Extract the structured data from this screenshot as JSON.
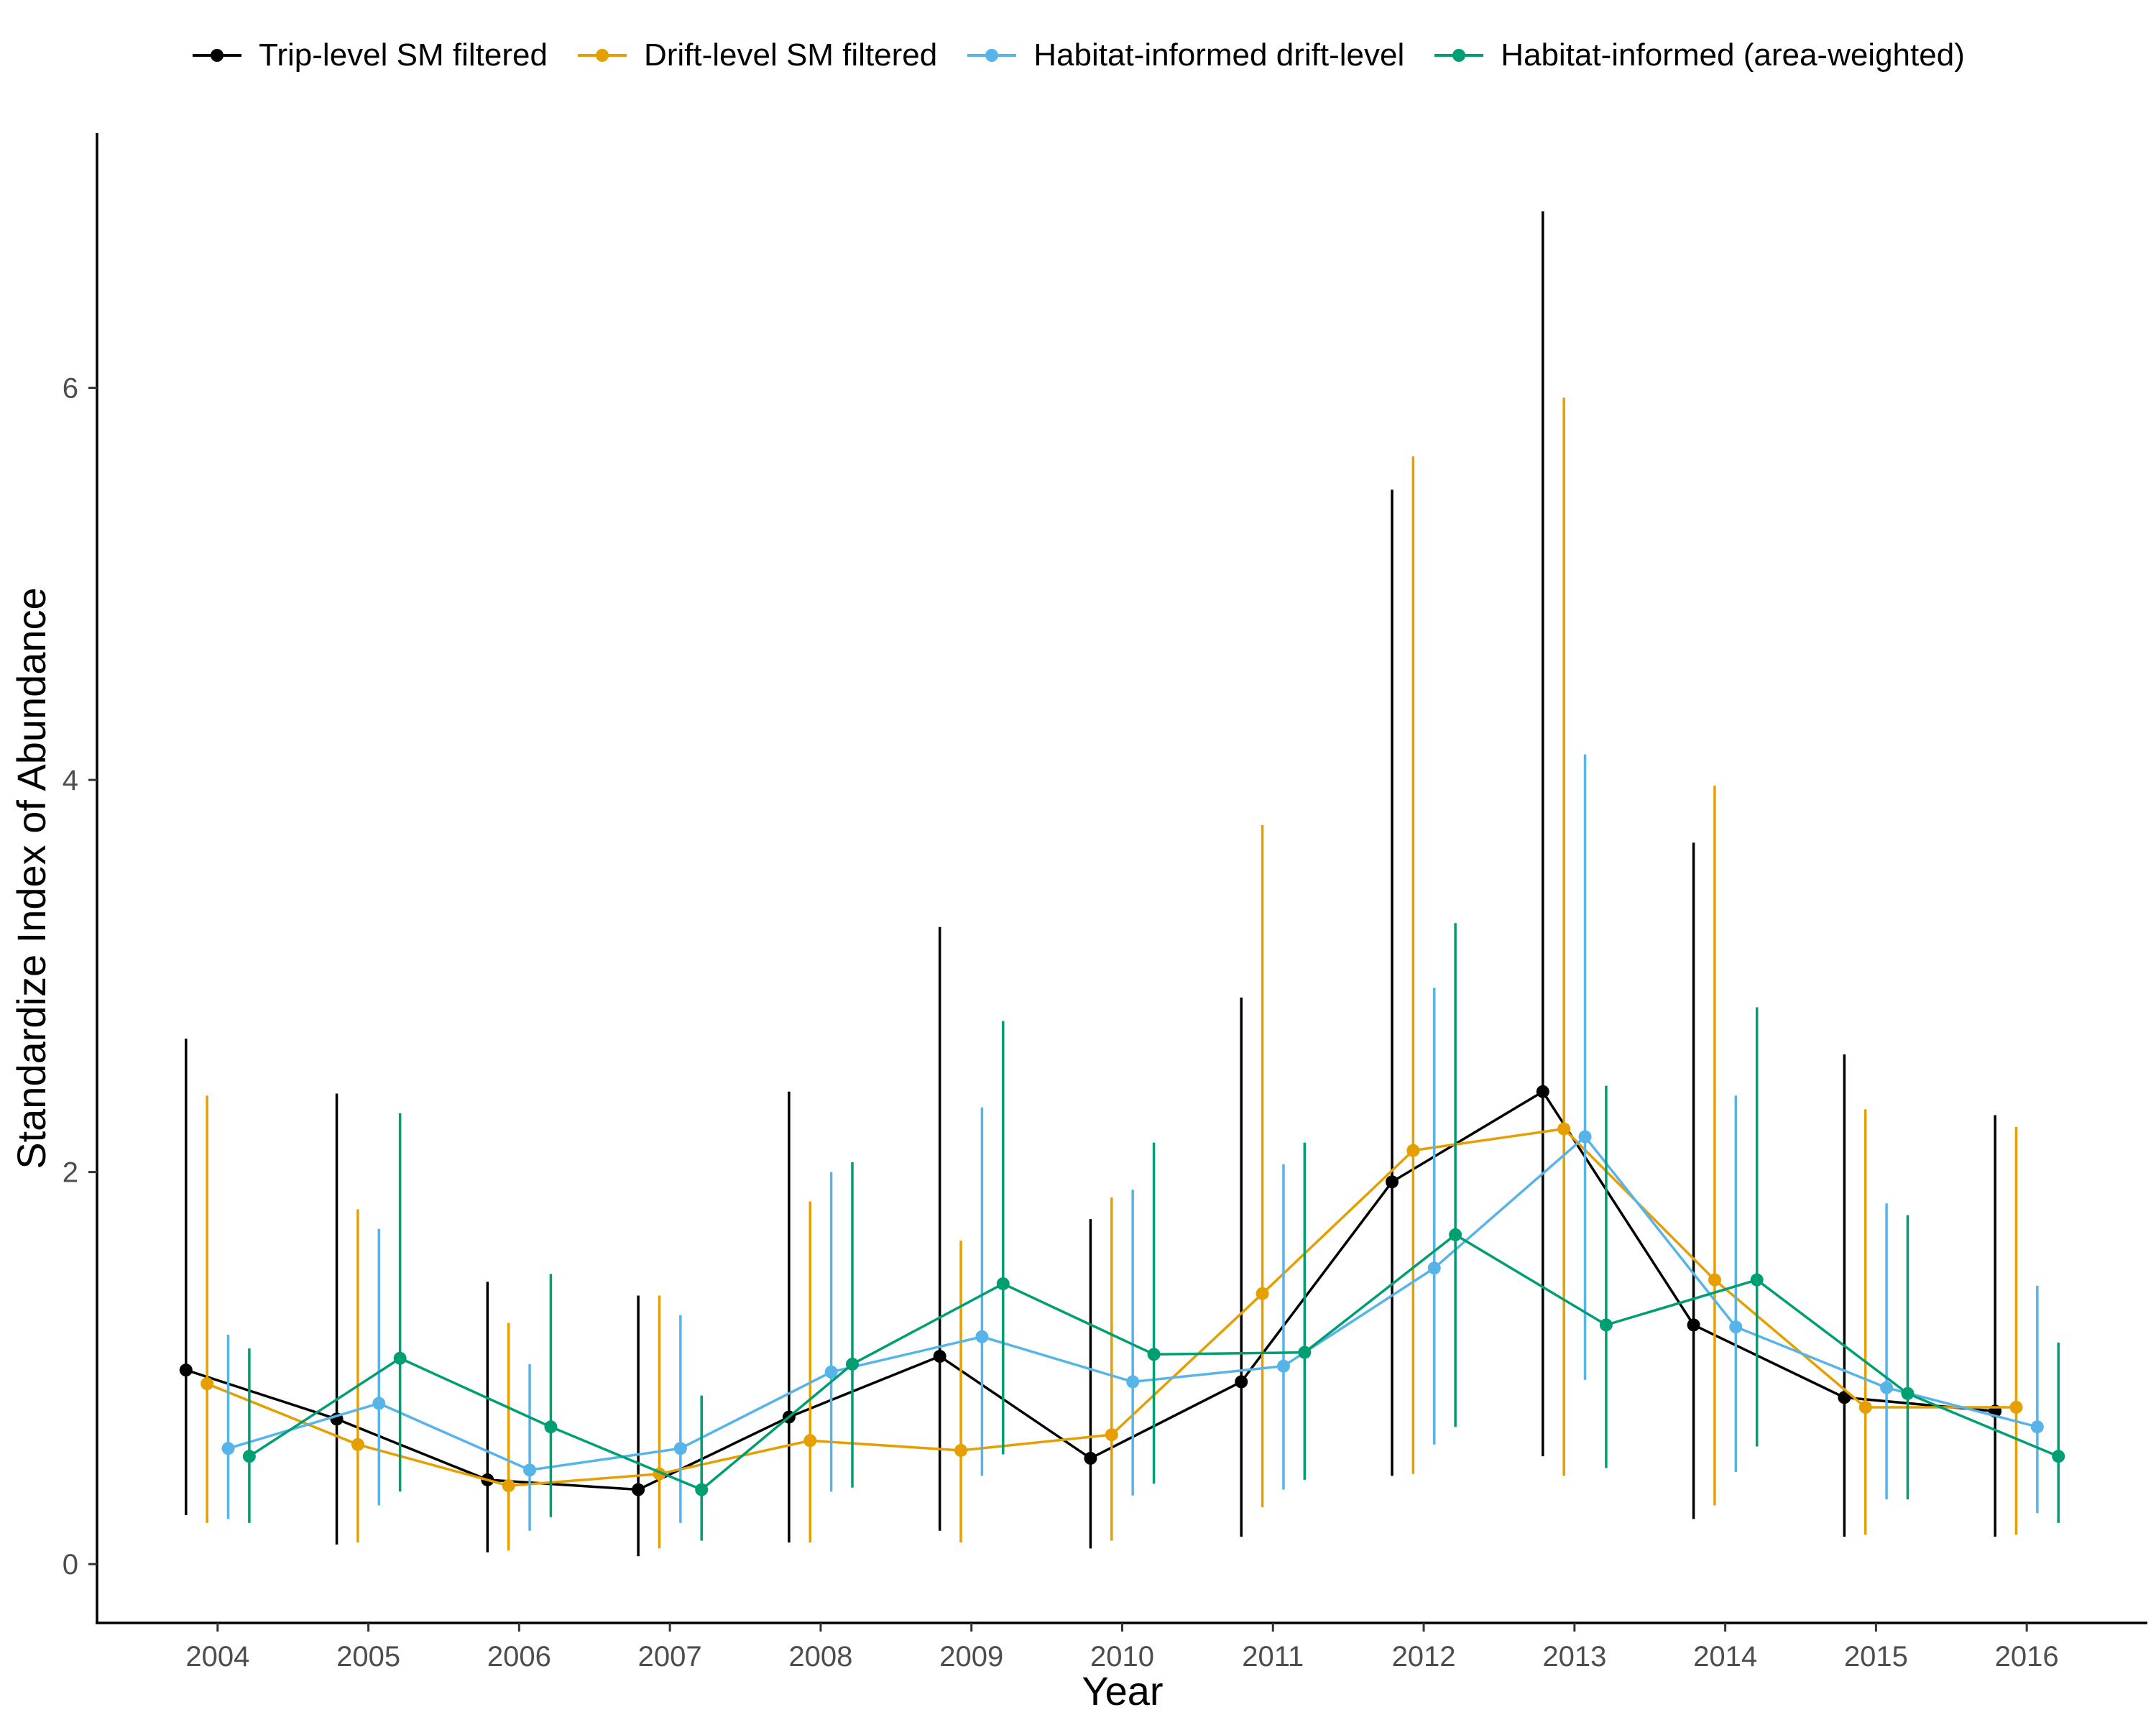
{
  "legend": {
    "items": [
      {
        "label": "Trip-level SM filtered"
      },
      {
        "label": "Drift-level SM filtered"
      },
      {
        "label": "Habitat-informed drift-level"
      },
      {
        "label": "Habitat-informed (area-weighted)"
      }
    ]
  },
  "chart_data": {
    "type": "line",
    "xlabel": "Year",
    "ylabel": "Standardize Index of Abundance",
    "x": [
      2004,
      2005,
      2006,
      2007,
      2008,
      2009,
      2010,
      2011,
      2012,
      2013,
      2014,
      2015,
      2016
    ],
    "ylim": [
      -0.3,
      7.3
    ],
    "yticks": [
      0,
      2,
      4,
      6
    ],
    "grid": false,
    "legend_position": "top",
    "error_bars": true,
    "series": [
      {
        "name": "Trip-level SM filtered",
        "color": "#000000",
        "values": [
          0.99,
          0.74,
          0.43,
          0.38,
          0.75,
          1.06,
          0.54,
          0.93,
          1.95,
          2.41,
          1.22,
          0.85,
          0.78
        ],
        "lower": [
          0.25,
          0.1,
          0.06,
          0.04,
          0.11,
          0.17,
          0.08,
          0.14,
          0.45,
          0.55,
          0.23,
          0.14,
          0.14
        ],
        "upper": [
          2.68,
          2.4,
          1.44,
          1.37,
          2.41,
          3.25,
          1.76,
          2.89,
          5.48,
          6.9,
          3.68,
          2.6,
          2.29
        ]
      },
      {
        "name": "Drift-level SM filtered",
        "color": "#E69F00",
        "values": [
          0.92,
          0.61,
          0.4,
          0.46,
          0.63,
          0.58,
          0.66,
          1.38,
          2.11,
          2.22,
          1.45,
          0.8,
          0.8
        ],
        "lower": [
          0.21,
          0.11,
          0.07,
          0.08,
          0.11,
          0.11,
          0.12,
          0.29,
          0.46,
          0.45,
          0.3,
          0.15,
          0.15
        ],
        "upper": [
          2.39,
          1.81,
          1.23,
          1.37,
          1.85,
          1.65,
          1.87,
          3.77,
          5.65,
          5.95,
          3.97,
          2.32,
          2.23
        ]
      },
      {
        "name": "Habitat-informed drift-level",
        "color": "#56B4E9",
        "values": [
          0.59,
          0.82,
          0.48,
          0.59,
          0.98,
          1.16,
          0.93,
          1.01,
          1.51,
          2.18,
          1.21,
          0.9,
          0.7
        ],
        "lower": [
          0.23,
          0.3,
          0.17,
          0.21,
          0.37,
          0.45,
          0.35,
          0.38,
          0.61,
          0.94,
          0.47,
          0.33,
          0.26
        ],
        "upper": [
          1.17,
          1.71,
          1.02,
          1.27,
          2.0,
          2.33,
          1.91,
          2.04,
          2.94,
          4.13,
          2.39,
          1.84,
          1.42
        ]
      },
      {
        "name": "Habitat-informed (area-weighted)",
        "color": "#009E73",
        "values": [
          0.55,
          1.05,
          0.7,
          0.38,
          1.02,
          1.43,
          1.07,
          1.08,
          1.68,
          1.22,
          1.45,
          0.87,
          0.55
        ],
        "lower": [
          0.21,
          0.37,
          0.24,
          0.12,
          0.39,
          0.56,
          0.41,
          0.43,
          0.7,
          0.49,
          0.6,
          0.33,
          0.21
        ],
        "upper": [
          1.1,
          2.3,
          1.48,
          0.86,
          2.05,
          2.77,
          2.15,
          2.15,
          3.27,
          2.44,
          2.84,
          1.78,
          1.13
        ]
      }
    ]
  }
}
